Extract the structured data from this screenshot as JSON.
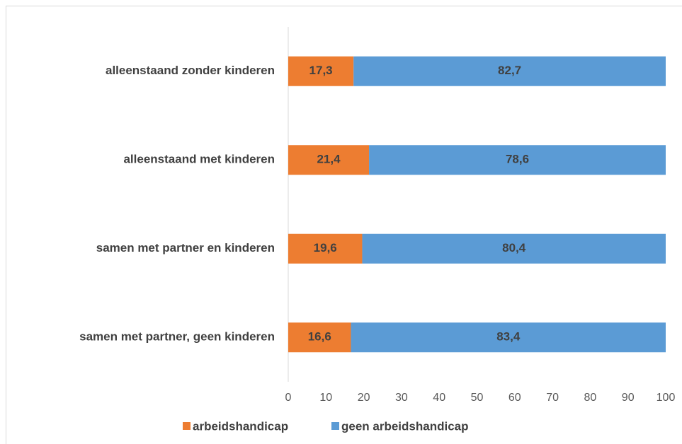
{
  "chart_data": {
    "type": "stacked_barh",
    "categories": [
      "alleenstaand zonder kinderen",
      "alleenstaand met kinderen",
      "samen met partner en kinderen",
      "samen met partner, geen kinderen"
    ],
    "series": [
      {
        "name": "arbeidshandicap",
        "color": "#ed7d31",
        "values": [
          17.3,
          21.4,
          19.6,
          16.6
        ],
        "value_labels": [
          "17,3",
          "21,4",
          "19,6",
          "16,6"
        ]
      },
      {
        "name": "geen arbeidshandicap",
        "color": "#5b9bd5",
        "values": [
          82.7,
          78.6,
          80.4,
          83.4
        ],
        "value_labels": [
          "82,7",
          "78,6",
          "80,4",
          "83,4"
        ]
      }
    ],
    "xlim": [
      0,
      100
    ],
    "xticks": [
      0,
      10,
      20,
      30,
      40,
      50,
      60,
      70,
      80,
      90,
      100
    ],
    "legend": "bottom",
    "grid": false
  }
}
